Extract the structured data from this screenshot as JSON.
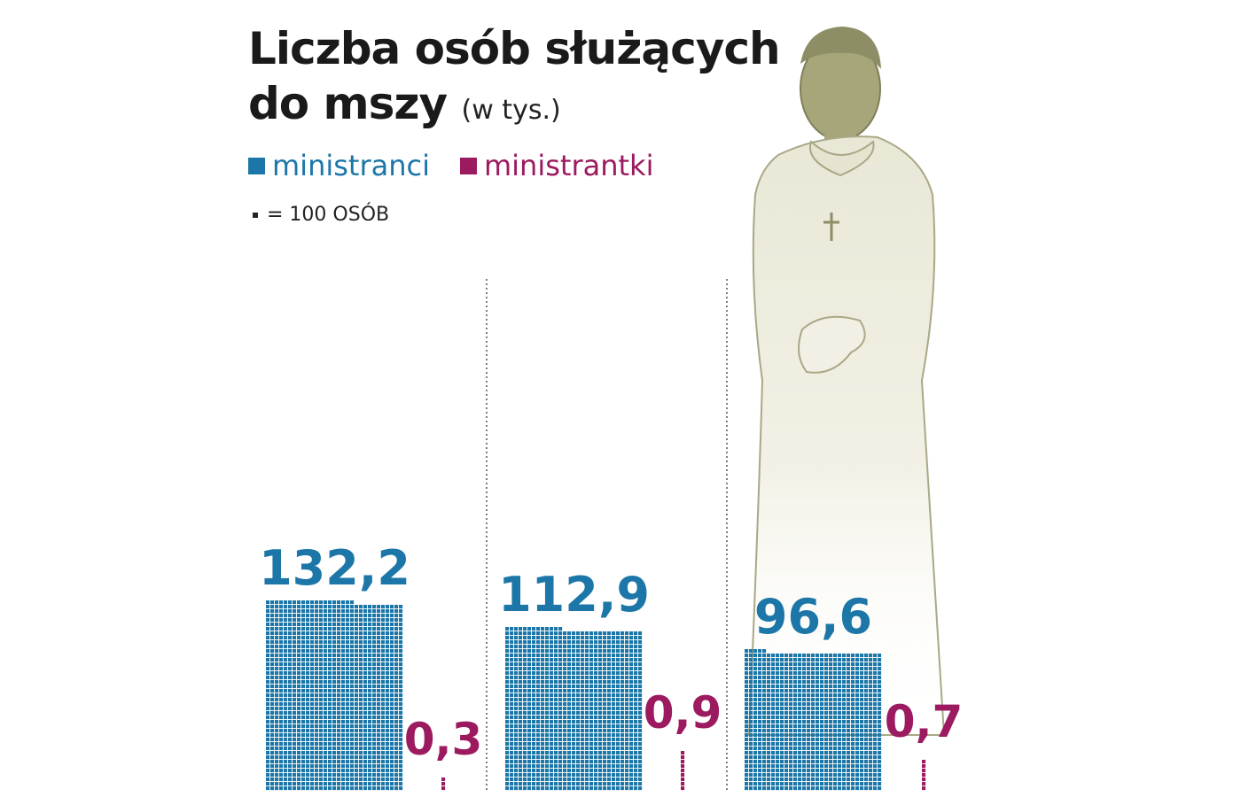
{
  "chart_data": {
    "type": "bar",
    "title": "Liczba osób służących do mszy",
    "title_line1": "Liczba osób służących",
    "title_line2": "do mszy",
    "unit": "(w tys.)",
    "legend_note": "= 100 OSÓB",
    "units_per_square": 0.1,
    "grid": false,
    "legend": "top-left",
    "categories": [
      "",
      "",
      ""
    ],
    "series": [
      {
        "name": "ministranci",
        "color": "#1c77a8",
        "values": [
          132.2,
          112.9,
          96.6
        ],
        "labels": [
          "132,2",
          "112,9",
          "96,6"
        ]
      },
      {
        "name": "ministrantki",
        "color": "#9c1a5f",
        "values": [
          0.3,
          0.9,
          0.7
        ],
        "labels": [
          "0,3",
          "0,9",
          "0,7"
        ]
      }
    ]
  }
}
